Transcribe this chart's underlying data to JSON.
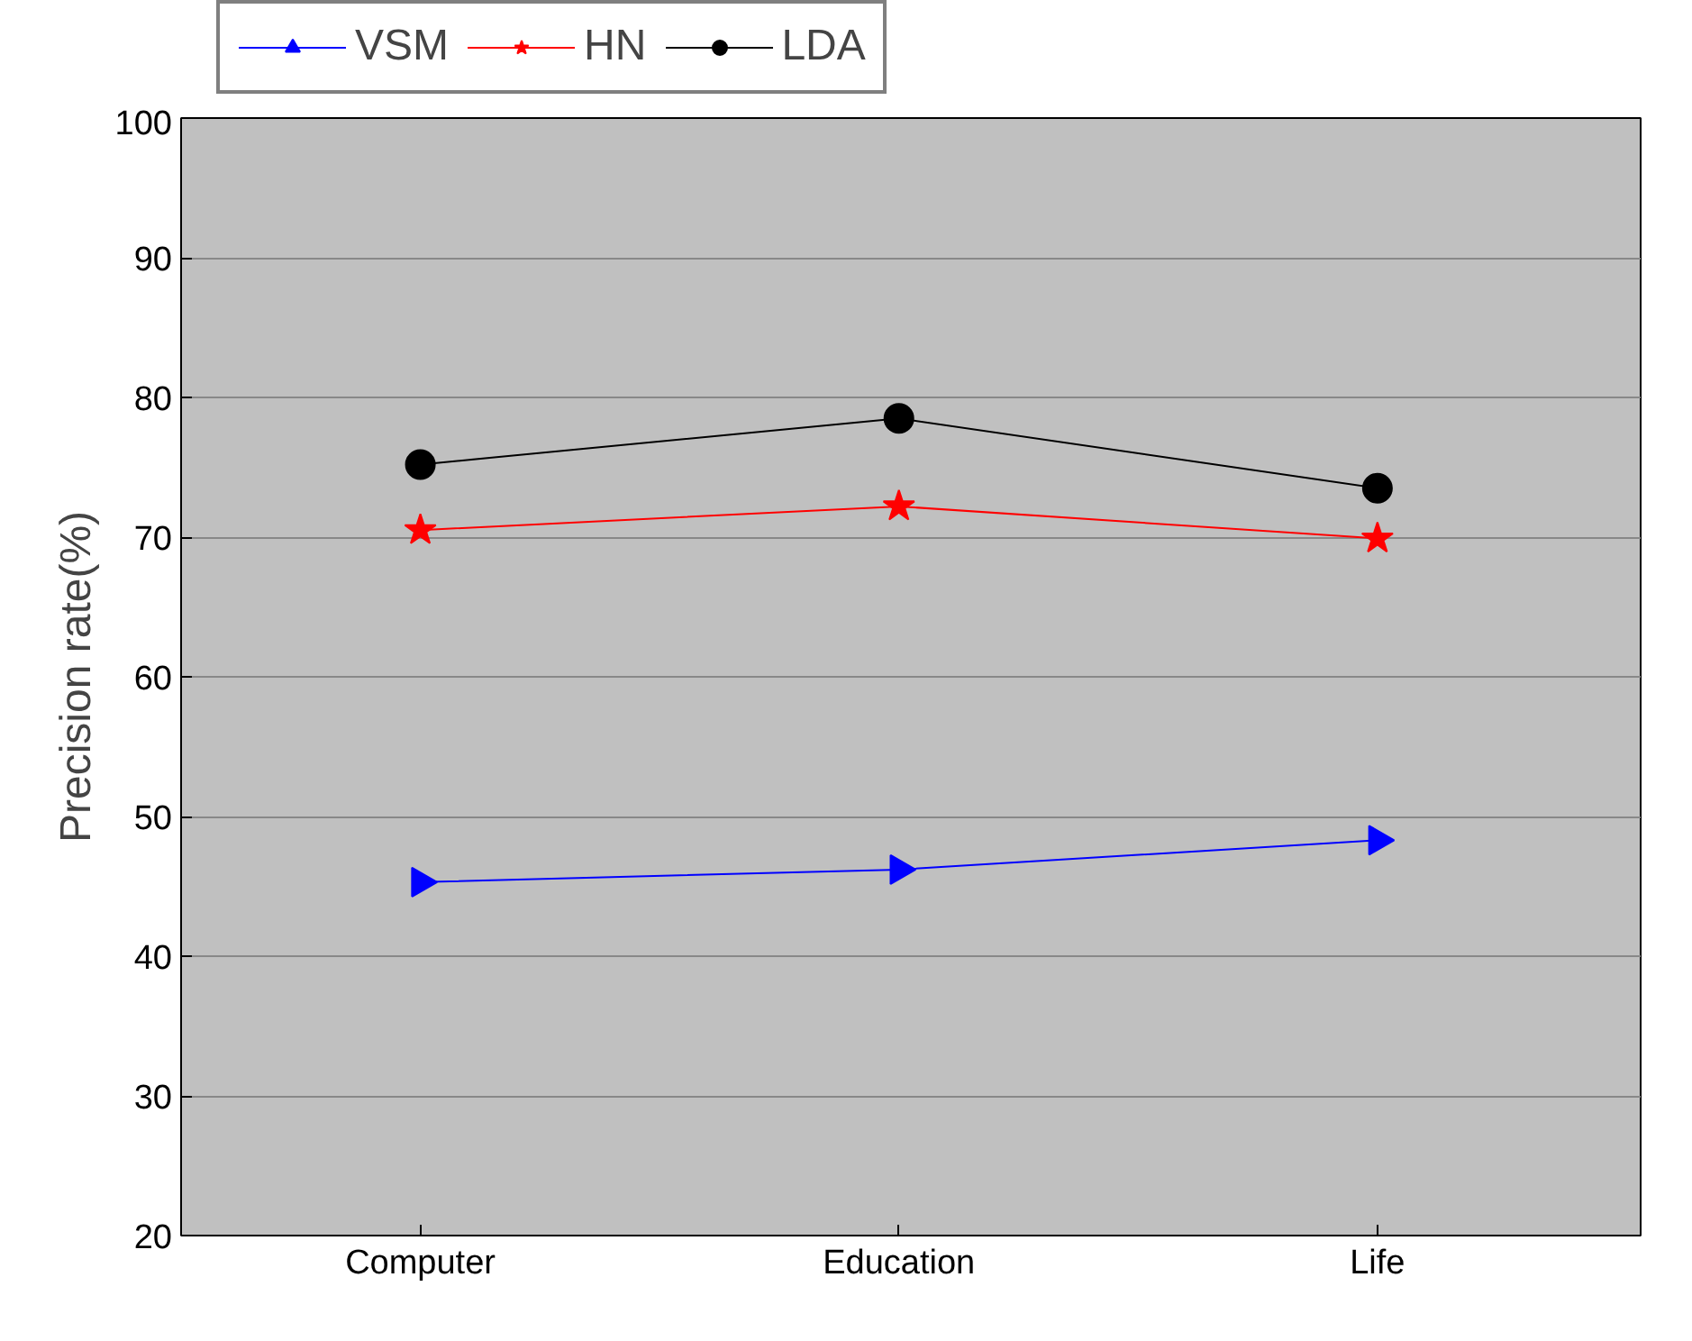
{
  "chart_data": {
    "type": "line",
    "ylabel": "Precision rate(%)",
    "categories": [
      "Computer",
      "Education",
      "Life"
    ],
    "series": [
      {
        "name": "VSM",
        "color": "#0000ff",
        "marker": "triangle",
        "values": [
          45.3,
          46.2,
          48.3
        ]
      },
      {
        "name": "HN",
        "color": "#ff0000",
        "marker": "star",
        "values": [
          70.5,
          72.2,
          69.9
        ]
      },
      {
        "name": "LDA",
        "color": "#000000",
        "marker": "circle",
        "values": [
          75.2,
          78.5,
          73.5
        ]
      }
    ],
    "ylim": [
      20,
      100
    ],
    "yticks": [
      20,
      30,
      40,
      50,
      60,
      70,
      80,
      90,
      100
    ],
    "grid": "y",
    "legend": "top",
    "line_style": "solid"
  }
}
